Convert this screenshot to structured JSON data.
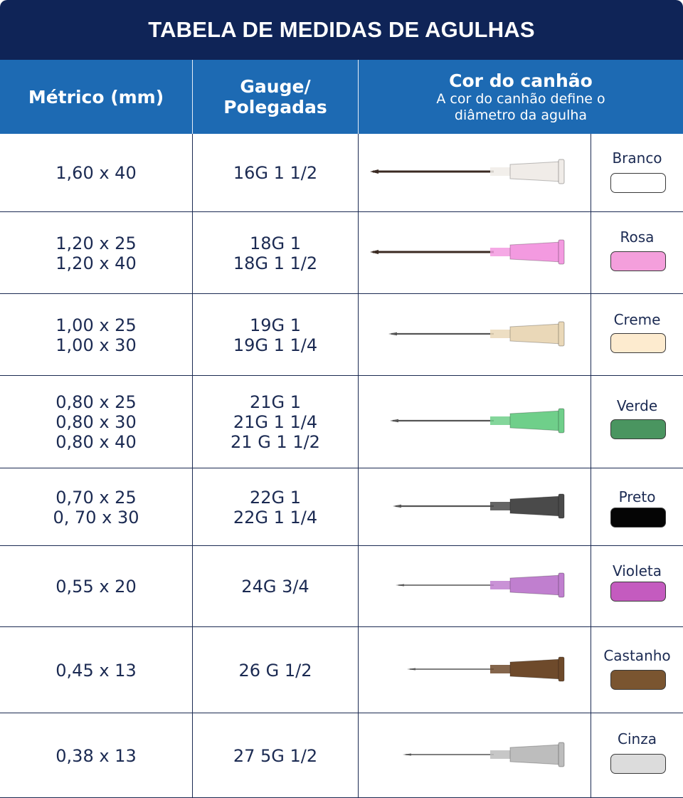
{
  "title": "TABELA DE MEDIDAS DE AGULHAS",
  "headers": {
    "metric": "Métrico (mm)",
    "gauge_line1": "Gauge/",
    "gauge_line2": "Polegadas",
    "color_title": "Cor do canhão",
    "color_sub1": "A cor do canhão define o",
    "color_sub2": "diâmetro da agulha"
  },
  "rows": [
    {
      "metric": [
        "1,60 x 40"
      ],
      "gauge": [
        "16G 1 1/2"
      ],
      "color_name": "Branco",
      "color": "#ffffff",
      "hub": "#f0ece8"
    },
    {
      "metric": [
        "1,20 x 25",
        "1,20 x 40"
      ],
      "gauge": [
        "18G 1",
        "18G 1 1/2"
      ],
      "color_name": "Rosa",
      "color": "#f49fdc",
      "hub": "#f39ae0"
    },
    {
      "metric": [
        "1,00 x 25",
        "1,00 x 30"
      ],
      "gauge": [
        "19G 1",
        "19G 1 1/4"
      ],
      "color_name": "Creme",
      "color": "#fdebcf",
      "hub": "#ead8b8"
    },
    {
      "metric": [
        "0,80 x 25",
        "0,80 x 30",
        "0,80 x 40"
      ],
      "gauge": [
        "21G 1",
        "21G 1 1/4",
        "21 G 1 1/2"
      ],
      "color_name": "Verde",
      "color": "#4a9560",
      "hub": "#6fcf8a"
    },
    {
      "metric": [
        "0,70 x 25",
        "0, 70 x 30"
      ],
      "gauge": [
        "22G 1",
        "22G 1 1/4"
      ],
      "color_name": "Preto",
      "color": "#050505",
      "hub": "#4a4a4a"
    },
    {
      "metric": [
        "0,55 x 20"
      ],
      "gauge": [
        "24G 3/4"
      ],
      "color_name": "Violeta",
      "color": "#c45bbf",
      "hub": "#c07fcf"
    },
    {
      "metric": [
        "0,45 x 13"
      ],
      "gauge": [
        "26 G 1/2"
      ],
      "color_name": "Castanho",
      "color": "#7a5530",
      "hub": "#6e4a2b"
    },
    {
      "metric": [
        "0,38 x 13"
      ],
      "gauge": [
        "27 5G 1/2"
      ],
      "color_name": "Cinza",
      "color": "#dcdcdc",
      "hub": "#bdbdbd"
    }
  ]
}
